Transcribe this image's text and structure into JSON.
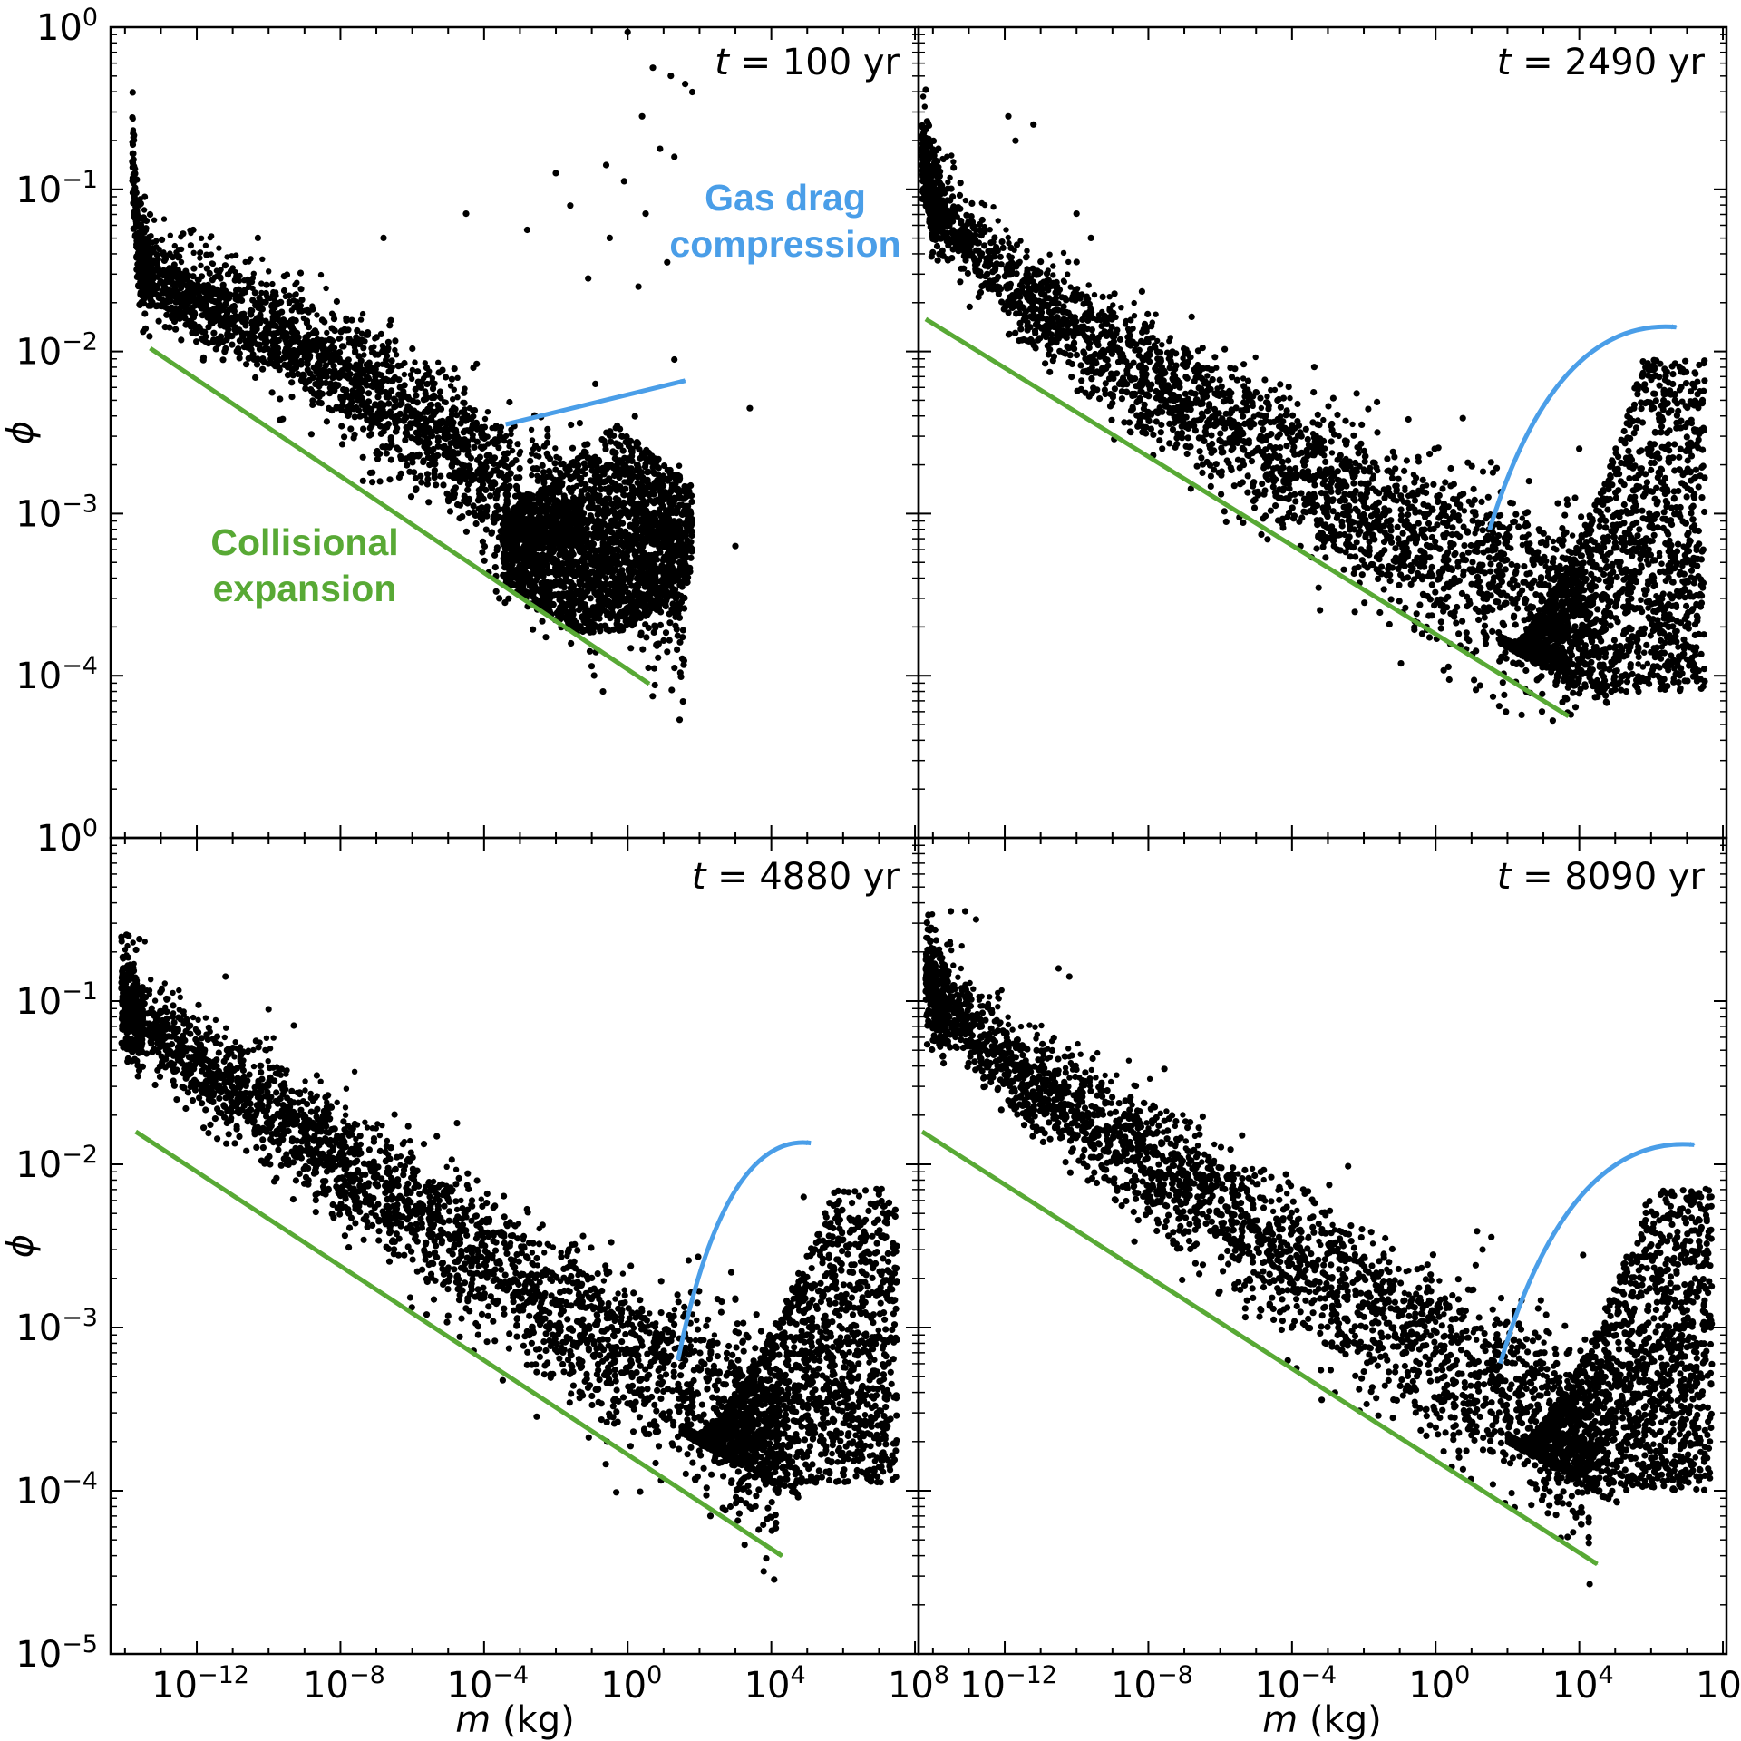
{
  "figure": {
    "layout": "2x2 panels sharing axes",
    "shared_xlabel": {
      "symbol": "m",
      "unit": "(kg)"
    },
    "shared_ylabel": {
      "symbol": "ϕ"
    },
    "x_ticks": [
      {
        "base": "10",
        "exp": "−12",
        "value": -12
      },
      {
        "base": "10",
        "exp": "−8",
        "value": -8
      },
      {
        "base": "10",
        "exp": "−4",
        "value": -4
      },
      {
        "base": "10",
        "exp": "0",
        "value": 0
      },
      {
        "base": "10",
        "exp": "4",
        "value": 4
      },
      {
        "base": "10",
        "exp": "8",
        "value": 8
      }
    ],
    "y_ticks_top": [
      {
        "base": "10",
        "exp": "0",
        "value": 0
      },
      {
        "base": "10",
        "exp": "−1",
        "value": -1
      },
      {
        "base": "10",
        "exp": "−2",
        "value": -2
      },
      {
        "base": "10",
        "exp": "−3",
        "value": -3
      },
      {
        "base": "10",
        "exp": "−4",
        "value": -4
      }
    ],
    "y_ticks_bottom": [
      {
        "base": "10",
        "exp": "0",
        "value": 0
      },
      {
        "base": "10",
        "exp": "−1",
        "value": -1
      },
      {
        "base": "10",
        "exp": "−2",
        "value": -2
      },
      {
        "base": "10",
        "exp": "−3",
        "value": -3
      },
      {
        "base": "10",
        "exp": "−4",
        "value": -4
      },
      {
        "base": "10",
        "exp": "−5",
        "value": -5
      }
    ],
    "annotations": {
      "gas_drag": [
        "Gas drag",
        "compression"
      ],
      "collisional": [
        "Collisional",
        "expansion"
      ]
    },
    "colors": {
      "points": "#000000",
      "gas_drag": "#4a9ee8",
      "collisional": "#58a935",
      "axes": "#000000"
    }
  },
  "chart_data": [
    {
      "type": "scatter",
      "panel": "top-left",
      "time_label": {
        "var": "t",
        "rest": " = 100 yr"
      },
      "xscale": "log",
      "yscale": "log",
      "xlim_log10": [
        -14.4,
        8.1
      ],
      "ylim_log10": [
        -5,
        0
      ],
      "xlabel": "",
      "ylabel": "ϕ",
      "trend_log10": [
        [
          -13.8,
          -0.8
        ],
        [
          -13.6,
          -1.45
        ],
        [
          -13.0,
          -1.6
        ],
        [
          -9,
          -2.0
        ],
        [
          -5,
          -2.55
        ],
        [
          -3,
          -2.95
        ],
        [
          -1,
          -3.15
        ],
        [
          0.5,
          -3.3
        ],
        [
          1.6,
          -3.45
        ]
      ],
      "hump_log10": {
        "x": [
          -3.5,
          1.8
        ],
        "phi": [
          -3.75,
          -2.45
        ]
      },
      "outliers_log10": [
        [
          0,
          -0.03
        ],
        [
          0.7,
          -0.25
        ],
        [
          1.2,
          -0.3
        ],
        [
          1.6,
          -0.35
        ],
        [
          1.8,
          -0.4
        ],
        [
          0.4,
          -0.55
        ],
        [
          0.9,
          -0.75
        ],
        [
          1.3,
          -0.8
        ],
        [
          -0.6,
          -0.85
        ],
        [
          -0.1,
          -0.95
        ],
        [
          -2.0,
          -0.9
        ],
        [
          -1.6,
          -1.1
        ],
        [
          -0.5,
          -1.3
        ],
        [
          0.5,
          -1.15
        ],
        [
          -1.1,
          -1.55
        ],
        [
          0.3,
          -1.6
        ],
        [
          1.1,
          -1.45
        ],
        [
          -2.8,
          -1.25
        ],
        [
          -4.5,
          -1.15
        ],
        [
          -6.8,
          -1.3
        ],
        [
          -10.3,
          -1.3
        ],
        [
          -12.1,
          -1.25
        ],
        [
          -4.3,
          -2.1
        ],
        [
          3.4,
          -2.35
        ],
        [
          3.0,
          -3.2
        ],
        [
          1.3,
          -2.05
        ],
        [
          0.2,
          -2.4
        ],
        [
          -0.9,
          -2.2
        ]
      ],
      "arrows": [
        {
          "kind": "collisional",
          "from": [
            -13.3,
            -1.98
          ],
          "to": [
            0.6,
            -4.05
          ]
        },
        {
          "kind": "gas_drag",
          "from": [
            -3.4,
            -2.45
          ],
          "to": [
            1.6,
            -2.18
          ]
        }
      ]
    },
    {
      "type": "scatter",
      "panel": "top-right",
      "time_label": {
        "var": "t",
        "rest": " = 2490 yr"
      },
      "xscale": "log",
      "yscale": "log",
      "xlim_log10": [
        -14.4,
        8.1
      ],
      "ylim_log10": [
        -5,
        0
      ],
      "trend_log10": [
        [
          -14.3,
          -0.8
        ],
        [
          -14,
          -1.05
        ],
        [
          -12,
          -1.6
        ],
        [
          -8,
          -2.2
        ],
        [
          -4,
          -2.75
        ],
        [
          -1,
          -3.15
        ],
        [
          1,
          -3.35
        ],
        [
          2,
          -3.45
        ],
        [
          3.5,
          -3.6
        ],
        [
          4.1,
          -3.7
        ]
      ],
      "hump_log10": {
        "x": [
          1.8,
          7.5
        ],
        "phi": [
          -4.2,
          -2.05
        ]
      },
      "outliers_log10": [
        [
          -11.9,
          -0.55
        ],
        [
          -11.2,
          -0.6
        ],
        [
          -11.7,
          -0.7
        ],
        [
          -10.0,
          -1.15
        ],
        [
          -9.6,
          -1.3
        ],
        [
          2.6,
          -2.8
        ],
        [
          4.0,
          -2.6
        ],
        [
          2.2,
          -3.05
        ]
      ],
      "arrows": [
        {
          "kind": "collisional",
          "from": [
            -14.2,
            -1.8
          ],
          "to": [
            3.7,
            -4.25
          ]
        },
        {
          "kind": "gas_drag",
          "from": [
            1.5,
            -3.1
          ],
          "to": [
            6.7,
            -1.85
          ],
          "curve": true
        }
      ]
    },
    {
      "type": "scatter",
      "panel": "bottom-left",
      "time_label": {
        "var": "t",
        "rest": " = 4880 yr"
      },
      "xscale": "log",
      "yscale": "log",
      "xlim_log10": [
        -14.4,
        8.1
      ],
      "ylim_log10": [
        -5,
        0
      ],
      "xlabel": "m (kg)",
      "ylabel": "ϕ",
      "trend_log10": [
        [
          -14.1,
          -0.95
        ],
        [
          -13.8,
          -1.1
        ],
        [
          -12,
          -1.4
        ],
        [
          -8,
          -2.0
        ],
        [
          -4,
          -2.6
        ],
        [
          -1,
          -3.1
        ],
        [
          1,
          -3.3
        ],
        [
          2.5,
          -3.45
        ],
        [
          3.8,
          -3.7
        ],
        [
          4.2,
          -3.8
        ]
      ],
      "hump_log10": {
        "x": [
          1.5,
          7.5
        ],
        "phi": [
          -4.05,
          -2.15
        ]
      },
      "outliers_log10": [
        [
          -13.9,
          -0.6
        ],
        [
          -13.6,
          -0.62
        ],
        [
          -11.2,
          -0.85
        ],
        [
          -10.0,
          -1.05
        ],
        [
          -9.3,
          -1.15
        ],
        [
          4.9,
          -2.2
        ],
        [
          5.5,
          -2.3
        ]
      ],
      "arrows": [
        {
          "kind": "collisional",
          "from": [
            -13.7,
            -1.8
          ],
          "to": [
            4.3,
            -4.4
          ]
        },
        {
          "kind": "gas_drag",
          "from": [
            1.4,
            -3.2
          ],
          "to": [
            5.1,
            -1.87
          ],
          "curve": true
        }
      ]
    },
    {
      "type": "scatter",
      "panel": "bottom-right",
      "time_label": {
        "var": "t",
        "rest": " = 8090 yr"
      },
      "xscale": "log",
      "yscale": "log",
      "xlim_log10": [
        -14.4,
        8.1
      ],
      "ylim_log10": [
        -5,
        0
      ],
      "xlabel": "m (kg)",
      "trend_log10": [
        [
          -14.2,
          -0.85
        ],
        [
          -13.8,
          -1.0
        ],
        [
          -12,
          -1.4
        ],
        [
          -8,
          -2.0
        ],
        [
          -4,
          -2.6
        ],
        [
          -1,
          -3.05
        ],
        [
          1,
          -3.3
        ],
        [
          2.5,
          -3.45
        ],
        [
          3.8,
          -3.7
        ],
        [
          4.3,
          -3.8
        ]
      ],
      "hump_log10": {
        "x": [
          2.0,
          7.7
        ],
        "phi": [
          -4.1,
          -2.15
        ]
      },
      "outliers_log10": [
        [
          -13.5,
          -0.45
        ],
        [
          -13.1,
          -0.45
        ],
        [
          -12.8,
          -0.5
        ],
        [
          -10.5,
          -0.8
        ],
        [
          -10.2,
          -0.85
        ],
        [
          2.2,
          -2.9
        ],
        [
          1.7,
          -2.95
        ],
        [
          6.2,
          -2.5
        ]
      ],
      "arrows": [
        {
          "kind": "collisional",
          "from": [
            -14.3,
            -1.8
          ],
          "to": [
            4.5,
            -4.45
          ]
        },
        {
          "kind": "gas_drag",
          "from": [
            1.8,
            -3.22
          ],
          "to": [
            7.2,
            -1.88
          ],
          "curve": true
        }
      ]
    }
  ]
}
